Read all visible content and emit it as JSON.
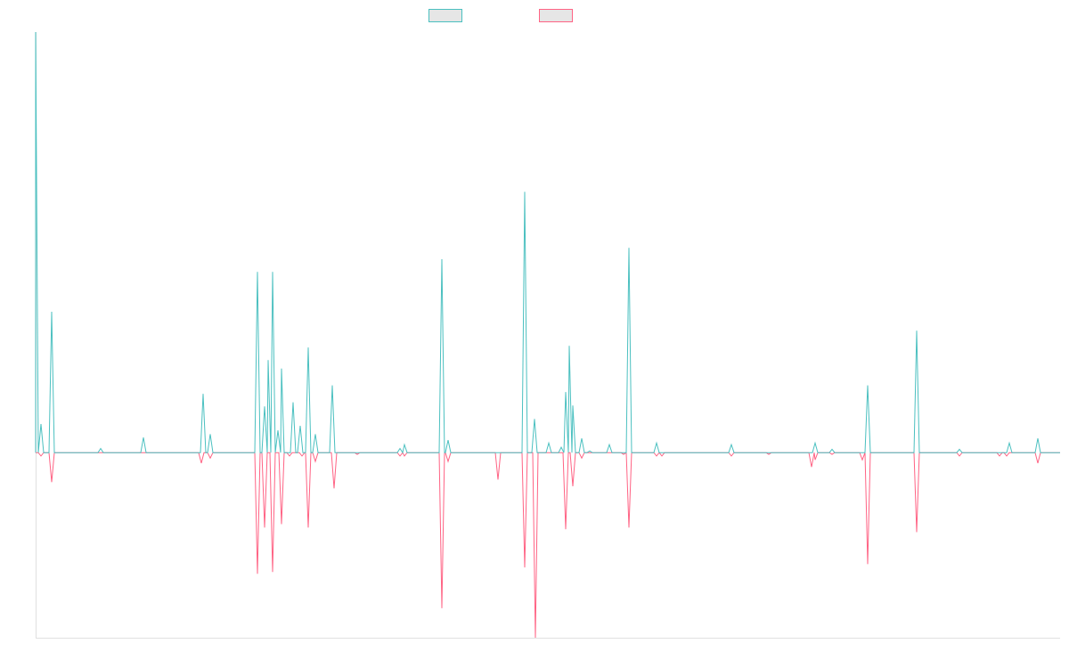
{
  "chart_data": {
    "type": "line",
    "title": "",
    "xlabel": "",
    "ylabel": "",
    "xlim": [
      0,
      230
    ],
    "ylim": [
      -44,
      100
    ],
    "grid": false,
    "legend_placement": "top",
    "series": [
      {
        "color": "#4bc0c0",
        "legend_fill": "#e6e6e6",
        "points": [
          [
            0,
            100
          ],
          [
            1.2,
            6.8
          ],
          [
            3.6,
            33.5
          ],
          [
            14.6,
            1
          ],
          [
            24.2,
            3.6
          ],
          [
            37.6,
            14
          ],
          [
            39.2,
            4.4
          ],
          [
            49.8,
            43
          ],
          [
            51.4,
            11
          ],
          [
            52.2,
            22
          ],
          [
            53.2,
            43
          ],
          [
            54.4,
            5.3
          ],
          [
            55.2,
            20
          ],
          [
            57.8,
            12
          ],
          [
            59.4,
            6.4
          ],
          [
            61.2,
            25
          ],
          [
            62.8,
            4.4
          ],
          [
            66.6,
            16
          ],
          [
            81.8,
            1
          ],
          [
            82.8,
            1.9
          ],
          [
            91.2,
            46
          ],
          [
            92.6,
            3
          ],
          [
            109.8,
            62
          ],
          [
            112,
            8
          ],
          [
            115.2,
            2.3
          ],
          [
            118,
            1.3
          ],
          [
            119,
            14.4
          ],
          [
            119.8,
            25.4
          ],
          [
            120.6,
            11.2
          ],
          [
            122.6,
            3.4
          ],
          [
            124.4,
            0.4
          ],
          [
            128.8,
            1.9
          ],
          [
            133.2,
            48.7
          ],
          [
            139.4,
            2.3
          ],
          [
            156.2,
            1.9
          ],
          [
            175,
            2.3
          ],
          [
            178.8,
            0.8
          ],
          [
            186.8,
            16
          ],
          [
            197.8,
            29
          ],
          [
            207.4,
            0.8
          ],
          [
            218.6,
            2.3
          ],
          [
            225,
            3.4
          ]
        ]
      },
      {
        "color": "#ff6384",
        "legend_fill": "#e6e6e6",
        "points": [
          [
            1.2,
            -0.8
          ],
          [
            3.6,
            -7
          ],
          [
            37.2,
            -2.5
          ],
          [
            39.2,
            -1.3
          ],
          [
            49.8,
            -28.8
          ],
          [
            51.4,
            -17.8
          ],
          [
            53.2,
            -28.4
          ],
          [
            55.2,
            -17
          ],
          [
            57,
            -0.8
          ],
          [
            59.8,
            -0.8
          ],
          [
            61.2,
            -17.8
          ],
          [
            62.8,
            -2.1
          ],
          [
            67,
            -8.5
          ],
          [
            72.2,
            -0.4
          ],
          [
            81.8,
            -0.8
          ],
          [
            82.8,
            -0.8
          ],
          [
            91.2,
            -37
          ],
          [
            92.6,
            -2.1
          ],
          [
            103.8,
            -6.4
          ],
          [
            109.8,
            -27.3
          ],
          [
            112.2,
            -44
          ],
          [
            119,
            -18.2
          ],
          [
            120.6,
            -8
          ],
          [
            122.6,
            -1.3
          ],
          [
            132,
            -0.4
          ],
          [
            133.2,
            -17.8
          ],
          [
            139.4,
            -0.8
          ],
          [
            140.6,
            -0.8
          ],
          [
            156.2,
            -0.8
          ],
          [
            164.6,
            -0.4
          ],
          [
            174.2,
            -3.4
          ],
          [
            175,
            -1.7
          ],
          [
            178.8,
            -0.4
          ],
          [
            185.6,
            -1.7
          ],
          [
            186.8,
            -26.5
          ],
          [
            197.8,
            -18.9
          ],
          [
            207.4,
            -0.8
          ],
          [
            216.4,
            -0.8
          ],
          [
            218,
            -0.8
          ],
          [
            225,
            -2.5
          ]
        ]
      }
    ]
  }
}
